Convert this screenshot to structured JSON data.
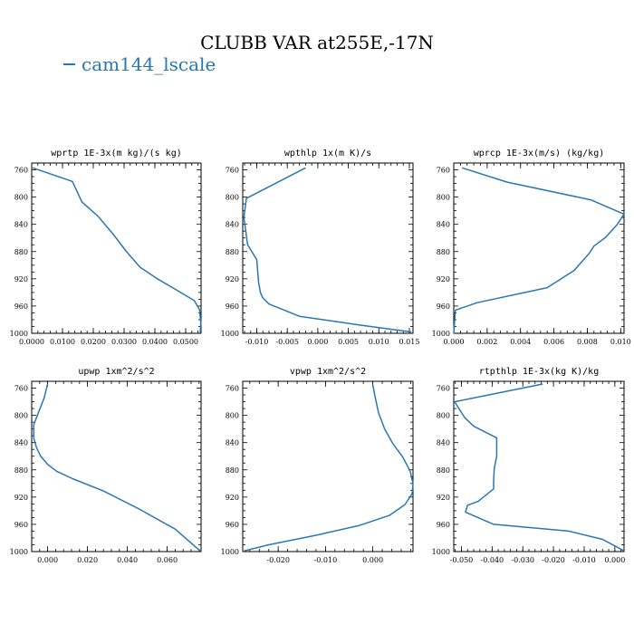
{
  "title": "CLUBB VAR at255E,-17N",
  "legend": {
    "label": "cam144_lscale",
    "color": "#2a77b0"
  },
  "chart_data": [
    {
      "type": "line",
      "title": "wprtp  1E-3x(m kg)/(s kg)",
      "xlim": [
        0,
        0.055
      ],
      "ylim": [
        750,
        1000
      ],
      "xticks": [
        0,
        0.01,
        0.02,
        0.03,
        0.04,
        0.05
      ],
      "xtick_labels": [
        "0.0000",
        "0.0100",
        "0.0200",
        "0.0300",
        "0.0400",
        "0.0500"
      ],
      "yticks": [
        760,
        800,
        840,
        880,
        920,
        960,
        1000
      ],
      "series": [
        {
          "x": [
            0.0003,
            0.0132,
            0.0163,
            0.0215,
            0.0262,
            0.0306,
            0.0352,
            0.0408,
            0.0465,
            0.0528,
            0.0545,
            0.0549,
            0.0547
          ],
          "y": [
            757,
            777,
            807,
            828,
            853,
            879,
            903,
            920,
            935,
            952,
            965,
            985,
            1000
          ]
        }
      ]
    },
    {
      "type": "line",
      "title": "wpthlp  1x(m K)/s",
      "xlim": [
        -0.0123,
        0.0156
      ],
      "ylim": [
        750,
        1000
      ],
      "xticks": [
        -0.01,
        -0.005,
        0.0,
        0.005,
        0.01,
        0.015
      ],
      "xtick_labels": [
        "-0.010",
        "-0.005",
        "0.000",
        "0.005",
        "0.010",
        "0.015"
      ],
      "yticks": [
        760,
        800,
        840,
        880,
        920,
        960,
        1000
      ],
      "series": [
        {
          "x": [
            -0.002,
            -0.0117,
            -0.0121,
            -0.0115,
            -0.01,
            -0.0097,
            -0.0094,
            -0.009,
            -0.008,
            -0.003,
            0.007,
            0.0153
          ],
          "y": [
            757,
            802,
            830,
            870,
            892,
            925,
            940,
            948,
            957,
            975,
            988,
            998
          ]
        }
      ]
    },
    {
      "type": "line",
      "title": "wprcp  1E-3x(m/s) (kg/kg)",
      "xlim": [
        0,
        0.0102
      ],
      "ylim": [
        750,
        1000
      ],
      "xticks": [
        0,
        0.002,
        0.004,
        0.006,
        0.008,
        0.01
      ],
      "xtick_labels": [
        "0.000",
        "0.002",
        "0.004",
        "0.006",
        "0.008",
        "0.010"
      ],
      "yticks": [
        760,
        800,
        840,
        880,
        920,
        960,
        1000
      ],
      "series": [
        {
          "x": [
            0.0005,
            0.0032,
            0.0082,
            0.0102,
            0.0098,
            0.0091,
            0.0084,
            0.0081,
            0.0072,
            0.0056,
            0.0014,
            0.0001,
            0.0
          ],
          "y": [
            757,
            778,
            804,
            825,
            840,
            859,
            872,
            883,
            908,
            933,
            955,
            966,
            1000
          ]
        }
      ]
    },
    {
      "type": "line",
      "title": "upwp  1xm^2/s^2",
      "xlim": [
        -0.008,
        0.077
      ],
      "ylim": [
        750,
        1000
      ],
      "xticks": [
        0,
        0.02,
        0.04,
        0.06
      ],
      "xtick_labels": [
        "0.000",
        "0.020",
        "0.040",
        "0.060"
      ],
      "yticks": [
        760,
        800,
        840,
        880,
        920,
        960,
        1000
      ],
      "series": [
        {
          "x": [
            0.0,
            -0.0018,
            -0.0045,
            -0.007,
            -0.0069,
            -0.0055,
            -0.0035,
            0.0,
            0.0045,
            0.0125,
            0.028,
            0.045,
            0.064,
            0.0765
          ],
          "y": [
            754,
            775,
            795,
            814,
            834,
            848,
            860,
            872,
            882,
            893,
            911,
            936,
            967,
            999
          ]
        }
      ]
    },
    {
      "type": "line",
      "title": "vpwp  1xm^2/s^2",
      "xlim": [
        -0.0275,
        0.0085
      ],
      "ylim": [
        750,
        1000
      ],
      "xticks": [
        -0.02,
        -0.01,
        0.0
      ],
      "xtick_labels": [
        "-0.020",
        "-0.010",
        "0.000"
      ],
      "yticks": [
        760,
        800,
        840,
        880,
        920,
        960,
        1000
      ],
      "series": [
        {
          "x": [
            0.0,
            0.0005,
            0.0012,
            0.0025,
            0.0042,
            0.0064,
            0.0079,
            0.0085,
            0.0083,
            0.0068,
            0.0035,
            -0.003,
            -0.012,
            -0.022,
            -0.0272
          ],
          "y": [
            755,
            773,
            796,
            820,
            841,
            862,
            882,
            900,
            915,
            931,
            947,
            962,
            976,
            990,
            999
          ]
        }
      ]
    },
    {
      "type": "line",
      "title": "rtpthlp  1E-3x(kg K)/kg",
      "xlim": [
        -0.0525,
        0.003
      ],
      "ylim": [
        750,
        1000
      ],
      "xticks": [
        -0.05,
        -0.04,
        -0.03,
        -0.02,
        -0.01,
        0.0
      ],
      "xtick_labels": [
        "-0.050",
        "-0.040",
        "-0.030",
        "-0.020",
        "-0.010",
        "0.000"
      ],
      "yticks": [
        760,
        800,
        840,
        880,
        920,
        960,
        1000
      ],
      "series": [
        {
          "x": [
            -0.0235,
            -0.0522,
            -0.049,
            -0.046,
            -0.0385,
            -0.0385,
            -0.0393,
            -0.0395,
            -0.0395,
            -0.0445,
            -0.048,
            -0.0487,
            -0.0395,
            -0.015,
            -0.004,
            0.003
          ],
          "y": [
            754,
            780,
            803,
            816,
            833,
            860,
            878,
            897,
            908,
            926,
            932,
            942,
            960,
            970,
            982,
            999
          ]
        }
      ]
    }
  ]
}
